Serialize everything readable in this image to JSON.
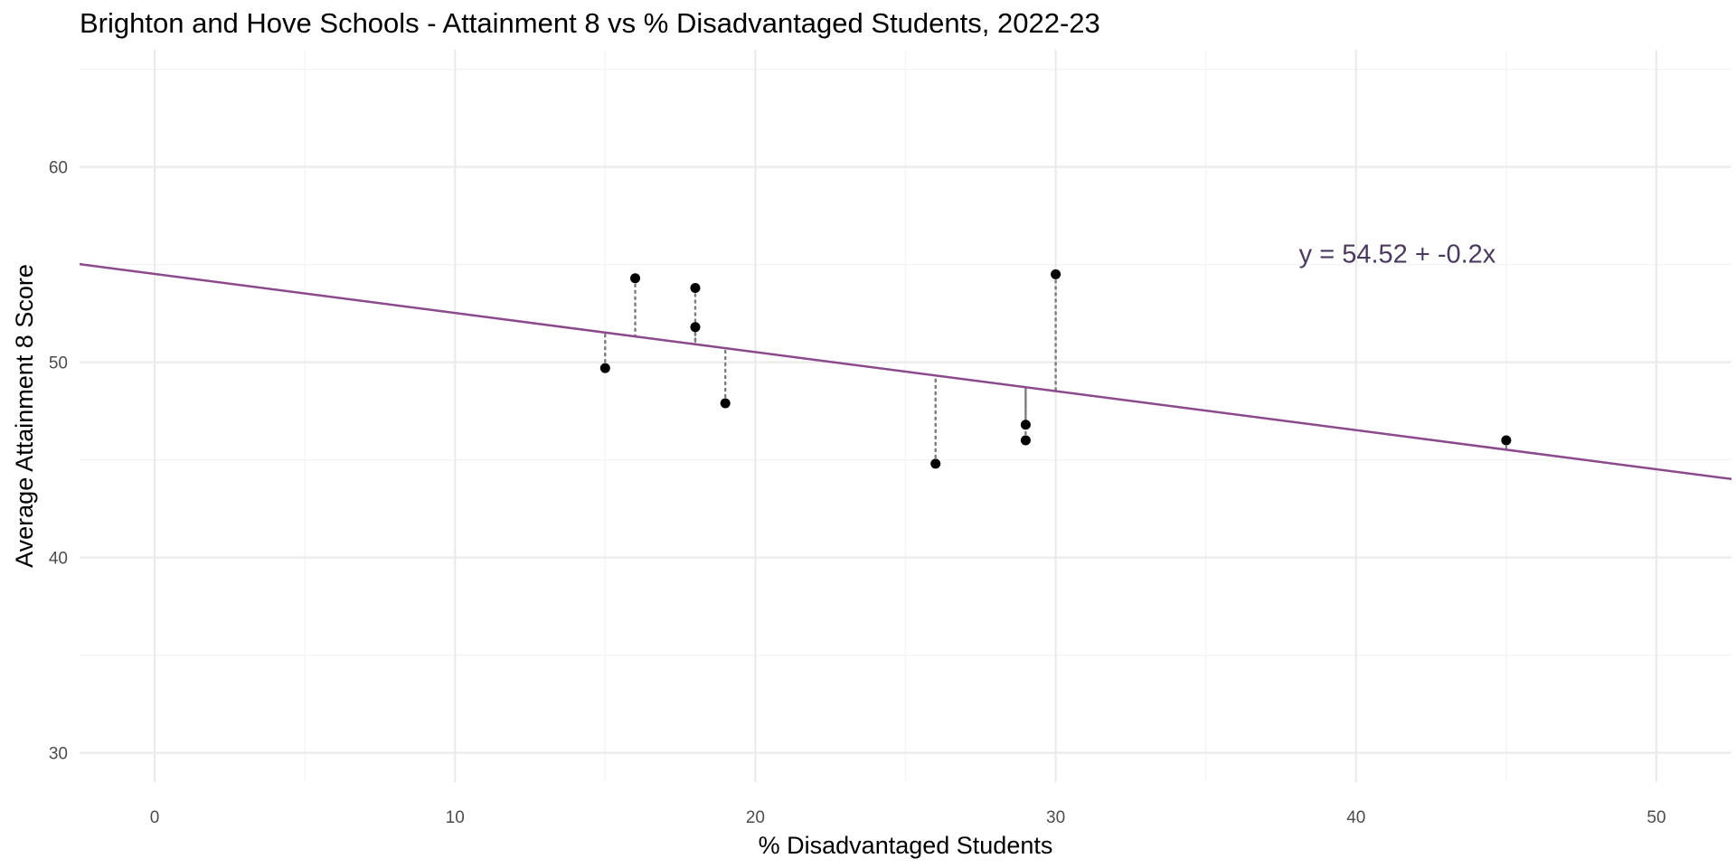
{
  "chart_data": {
    "type": "scatter",
    "title": "Brighton and Hove Schools - Attainment 8 vs % Disadvantaged Students, 2022-23",
    "xlabel": "% Disadvantaged Students",
    "ylabel": "Average Attainment 8 Score",
    "xlim": [
      -2.5,
      52.5
    ],
    "ylim": [
      28.5,
      66
    ],
    "x_ticks": [
      0,
      10,
      20,
      30,
      40,
      50
    ],
    "y_ticks": [
      30,
      40,
      50,
      60
    ],
    "grid": true,
    "legend": "none",
    "points": [
      {
        "x": 15,
        "y": 49.7
      },
      {
        "x": 16,
        "y": 54.3
      },
      {
        "x": 18,
        "y": 53.8
      },
      {
        "x": 18,
        "y": 51.8
      },
      {
        "x": 19,
        "y": 47.9
      },
      {
        "x": 26,
        "y": 44.8
      },
      {
        "x": 29,
        "y": 46.8
      },
      {
        "x": 29,
        "y": 46.0
      },
      {
        "x": 30,
        "y": 54.5
      },
      {
        "x": 45,
        "y": 46.0
      }
    ],
    "regression": {
      "intercept": 54.52,
      "slope": -0.2
    },
    "equation_label": "y = 54.52 + -0.2x",
    "colors": {
      "points": "#000000",
      "regression_line": "#8b4a8b",
      "residuals": "#7f7f7f",
      "equation": "#4b3a5e",
      "grid_major": "#ebebeb",
      "grid_minor": "#f5f5f5"
    }
  }
}
